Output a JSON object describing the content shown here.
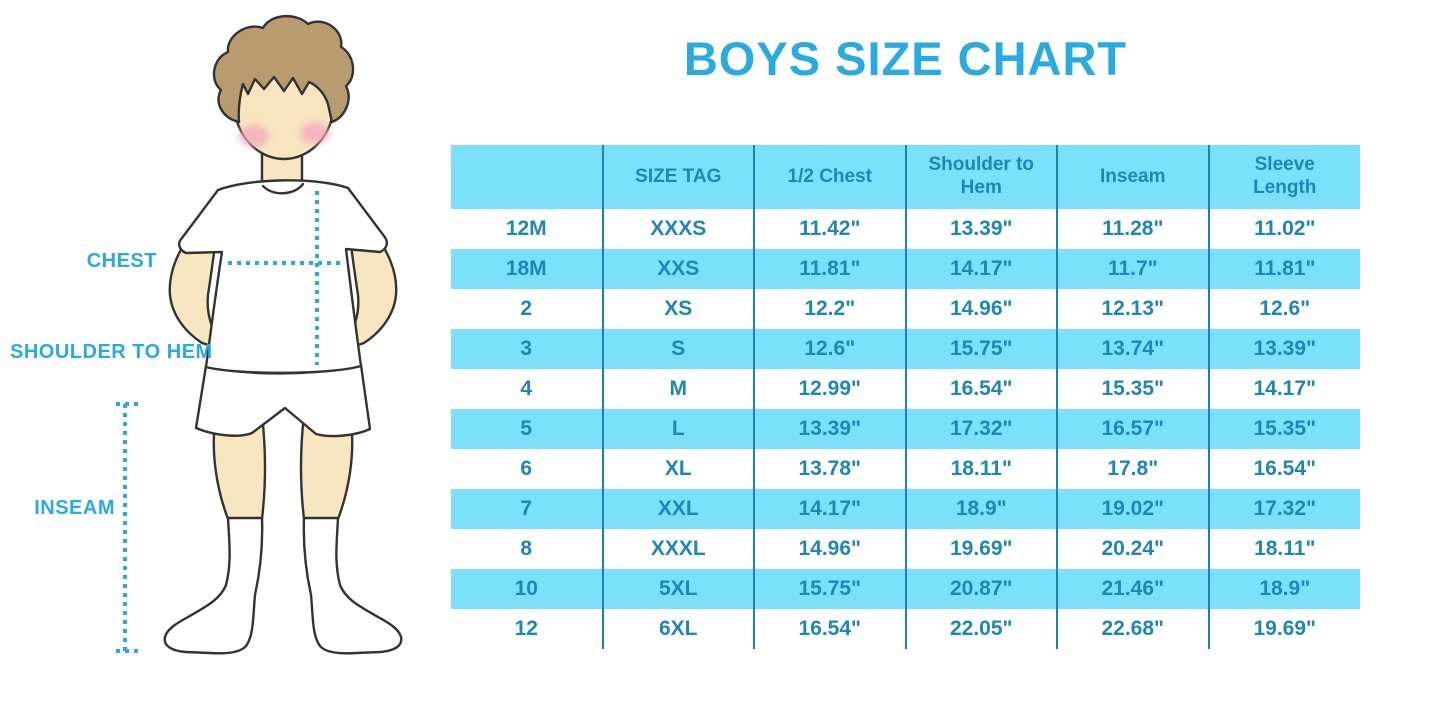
{
  "title": "BOYS SIZE CHART",
  "diagram": {
    "chest_label": "CHEST",
    "shoulder_to_hem_label": "SHOULDER TO HEM",
    "inseam_label": "INSEAM"
  },
  "colors": {
    "accent": "#29ABE2",
    "stripe": "#7BE0FA",
    "table-text": "#1F86B6",
    "rule": "#1D82B2",
    "skin": "#F8E6C0",
    "hair": "#B89C6F",
    "blush": "#F2ABBE",
    "outline": "#333333"
  },
  "chart_data": {
    "type": "table",
    "title": "BOYS SIZE CHART",
    "columns": [
      "",
      "SIZE TAG",
      "1/2 Chest",
      "Shoulder to Hem",
      "Inseam",
      "Sleeve Length"
    ],
    "rows": [
      [
        "12M",
        "XXXS",
        "11.42\"",
        "13.39\"",
        "11.28\"",
        "11.02\""
      ],
      [
        "18M",
        "XXS",
        "11.81\"",
        "14.17\"",
        "11.7\"",
        "11.81\""
      ],
      [
        "2",
        "XS",
        "12.2\"",
        "14.96\"",
        "12.13\"",
        "12.6\""
      ],
      [
        "3",
        "S",
        "12.6\"",
        "15.75\"",
        "13.74\"",
        "13.39\""
      ],
      [
        "4",
        "M",
        "12.99\"",
        "16.54\"",
        "15.35\"",
        "14.17\""
      ],
      [
        "5",
        "L",
        "13.39\"",
        "17.32\"",
        "16.57\"",
        "15.35\""
      ],
      [
        "6",
        "XL",
        "13.78\"",
        "18.11\"",
        "17.8\"",
        "16.54\""
      ],
      [
        "7",
        "XXL",
        "14.17\"",
        "18.9\"",
        "19.02\"",
        "17.32\""
      ],
      [
        "8",
        "XXXL",
        "14.96\"",
        "19.69\"",
        "20.24\"",
        "18.11\""
      ],
      [
        "10",
        "5XL",
        "15.75\"",
        "20.87\"",
        "21.46\"",
        "18.9\""
      ],
      [
        "12",
        "6XL",
        "16.54\"",
        "22.05\"",
        "22.68\"",
        "19.69\""
      ]
    ]
  }
}
